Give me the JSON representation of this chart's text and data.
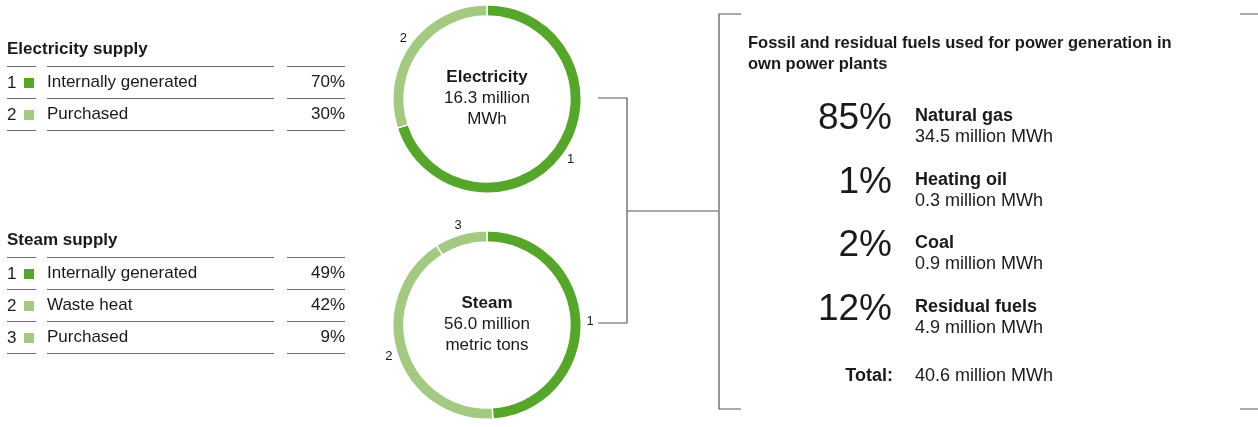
{
  "chart_data": [
    {
      "type": "donut",
      "title": "Electricity",
      "subtitle": "16.3 million MWh",
      "legend_title": "Electricity supply",
      "legend": "left",
      "categories": [
        "Internally generated",
        "Purchased"
      ],
      "values": [
        70,
        30
      ],
      "colors": [
        "#56a62b",
        "#a4c983"
      ],
      "value_labels": [
        "70%",
        "30%"
      ],
      "annotations": [
        "1",
        "2"
      ]
    },
    {
      "type": "donut",
      "title": "Steam",
      "subtitle": "56.0 million metric tons",
      "legend_title": "Steam supply",
      "legend": "left",
      "categories": [
        "Internally generated",
        "Waste heat",
        "Purchased"
      ],
      "values": [
        49,
        42,
        9
      ],
      "colors": [
        "#56a62b",
        "#a4c983",
        "#a4c983"
      ],
      "value_labels": [
        "49%",
        "42%",
        "9%"
      ],
      "annotations": [
        "1",
        "2",
        "3"
      ]
    },
    {
      "type": "other",
      "title": "Fossil and residual fuels used for power generation in own power plants",
      "annotations": [
        "85%",
        "Natural gas",
        "34.5 million MWh",
        "1%",
        "Heating oil",
        "0.3 million MWh",
        "2%",
        "Coal",
        "0.9 million MWh",
        "12%",
        "Residual fuels",
        "4.9 million MWh",
        "Total:",
        "40.6 million MWh"
      ]
    }
  ]
}
